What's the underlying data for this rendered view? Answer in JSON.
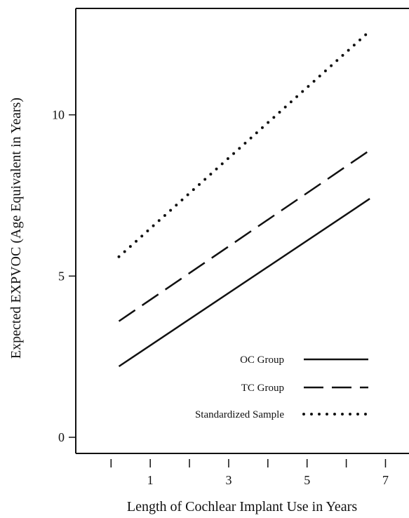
{
  "chart_data": {
    "type": "line",
    "title": "",
    "xlabel": "Length of Cochlear Implant Use in Years",
    "ylabel": "Expected EXPVOC (Age Equivalent in Years)",
    "xlim": [
      -0.9,
      7.6
    ],
    "ylim": [
      -0.5,
      13.3
    ],
    "xticks": [
      1,
      3,
      5,
      7
    ],
    "xtick_labels": [
      "1",
      "3",
      "5",
      "7"
    ],
    "x_minor_ticks": [
      0,
      2,
      4,
      6
    ],
    "yticks": [
      0,
      5,
      10
    ],
    "ytick_labels": [
      "0",
      "5",
      "10"
    ],
    "grid": false,
    "legend_position": "bottom-right",
    "series": [
      {
        "name": "OC Group",
        "style": "solid",
        "x": [
          0.2,
          6.6
        ],
        "y": [
          2.2,
          7.4
        ]
      },
      {
        "name": "TC Group",
        "style": "dashed",
        "x": [
          0.2,
          6.6
        ],
        "y": [
          3.6,
          8.9
        ]
      },
      {
        "name": "Standardized Sample",
        "style": "dotted",
        "x": [
          0.2,
          6.6
        ],
        "y": [
          5.6,
          12.6
        ]
      }
    ]
  }
}
